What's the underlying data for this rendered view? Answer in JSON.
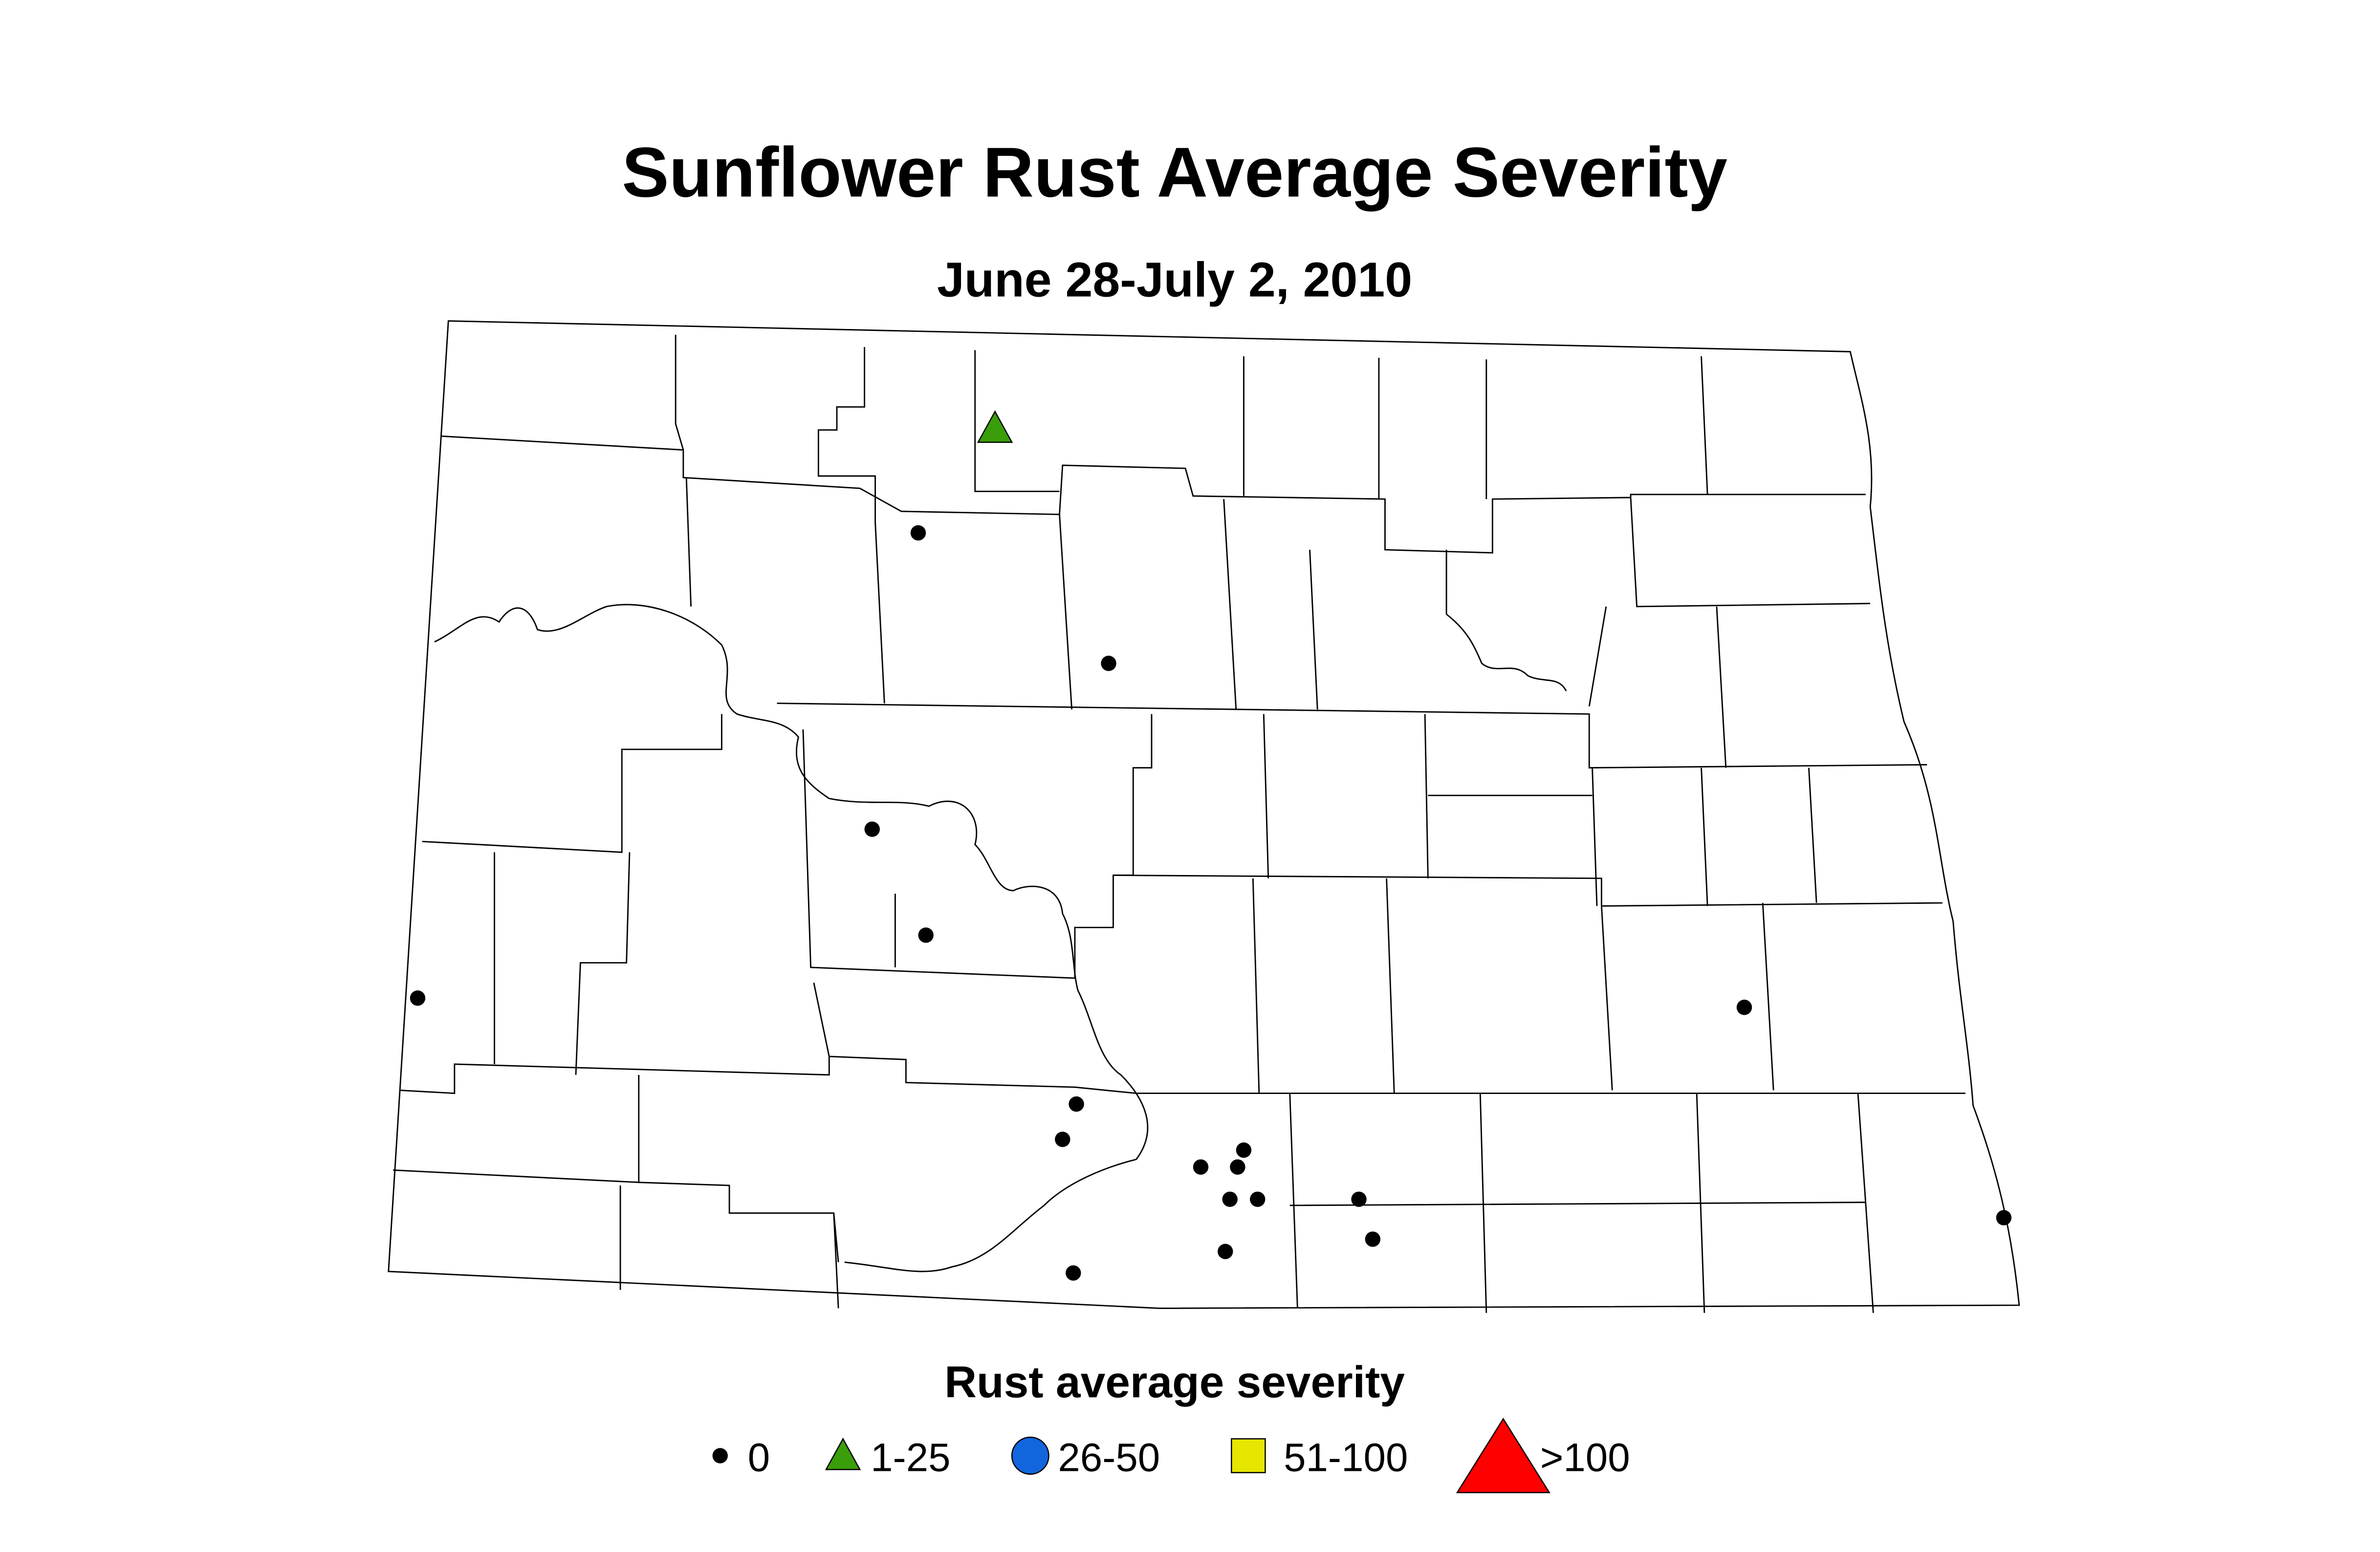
{
  "header": {
    "title": "Sunflower Rust Average Severity",
    "subtitle": "June 28-July 2, 2010"
  },
  "legend": {
    "title": "Rust average severity",
    "items": [
      {
        "label": "0",
        "symbol": "dot",
        "color": "#000000"
      },
      {
        "label": "1-25",
        "symbol": "triangle",
        "color": "#3a9e0a"
      },
      {
        "label": "26-50",
        "symbol": "circle",
        "color": "#1166dd"
      },
      {
        "label": "51-100",
        "symbol": "square",
        "color": "#e6e600"
      },
      {
        "label": ">100",
        "symbol": "big-triangle",
        "color": "#ff0000"
      }
    ]
  }
}
